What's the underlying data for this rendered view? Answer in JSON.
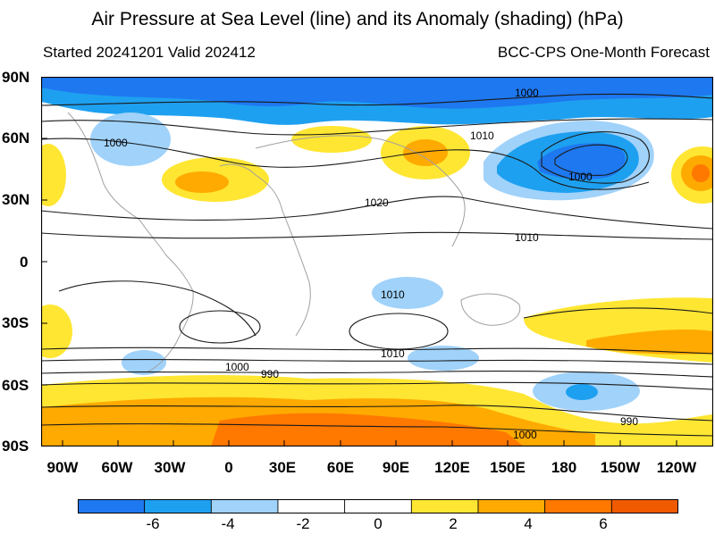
{
  "title": "Air Pressure at Sea Level (line) and its Anomaly (shading) (hPa)",
  "subtitle_left": "Started 20241201  Valid 202412",
  "subtitle_right": "BCC-CPS One-Month Forecast",
  "lat_labels": [
    "90N",
    "60N",
    "30N",
    "0",
    "30S",
    "60S",
    "90S"
  ],
  "lon_labels": [
    "90W",
    "60W",
    "30W",
    "0",
    "30E",
    "60E",
    "90E",
    "120E",
    "150E",
    "180",
    "150W",
    "120W"
  ],
  "contour_labels": [
    "1000",
    "1010",
    "1000",
    "1000",
    "1020",
    "1010",
    "1010",
    "1010",
    "1000",
    "990",
    "990",
    "1000"
  ],
  "colorbar": {
    "ticks": [
      "-6",
      "-4",
      "-2",
      "0",
      "2",
      "4",
      "6"
    ],
    "colors": [
      "#1e78f0",
      "#1ea0f0",
      "#a0d2fa",
      "#ffffff",
      "#ffffff",
      "#ffe632",
      "#ffaa00",
      "#ff7800",
      "#f05a00"
    ]
  },
  "colors": {
    "strong_negative": "#1e78f0",
    "moderate_negative": "#1ea0f0",
    "weak_negative": "#a0d2fa",
    "weak_positive": "#ffe632",
    "moderate_positive": "#ffaa00",
    "strong_positive": "#ff7800",
    "very_strong_positive": "#f05a00"
  }
}
